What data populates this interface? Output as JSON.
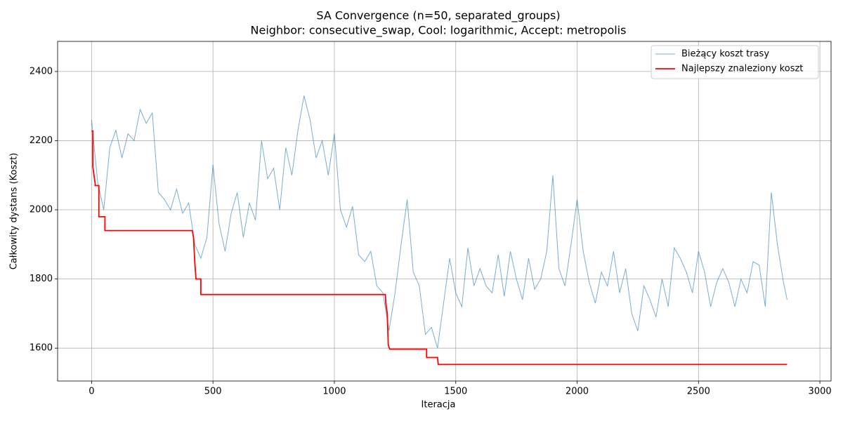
{
  "chart_data": {
    "type": "line",
    "title": "SA Convergence (n=50, separated_groups)",
    "subtitle": "Neighbor: consecutive_swap, Cool: logarithmic, Accept: metropolis",
    "x_label": "Iteracja",
    "y_label": "Całkowity dystans (Koszt)",
    "xlim": [
      -140,
      3046
    ],
    "ylim": [
      1505,
      2487
    ],
    "xticks": [
      0,
      500,
      1000,
      1500,
      2000,
      2500,
      3000
    ],
    "yticks": [
      1600,
      1800,
      2000,
      2200,
      2400
    ],
    "grid": true,
    "legend": "upper right",
    "series": [
      {
        "name": "Bieżący koszt trasy",
        "color": "#1f77b4",
        "x": [
          0,
          25,
          50,
          75,
          100,
          125,
          150,
          175,
          200,
          225,
          250,
          275,
          300,
          325,
          350,
          375,
          400,
          425,
          450,
          475,
          500,
          525,
          550,
          575,
          600,
          625,
          650,
          675,
          700,
          725,
          750,
          775,
          800,
          825,
          850,
          875,
          900,
          925,
          950,
          975,
          1000,
          1025,
          1050,
          1075,
          1100,
          1125,
          1150,
          1175,
          1200,
          1225,
          1250,
          1275,
          1300,
          1325,
          1350,
          1375,
          1400,
          1425,
          1450,
          1475,
          1500,
          1525,
          1550,
          1575,
          1600,
          1625,
          1650,
          1675,
          1700,
          1725,
          1750,
          1775,
          1800,
          1825,
          1850,
          1875,
          1900,
          1925,
          1950,
          1975,
          2000,
          2025,
          2050,
          2075,
          2100,
          2125,
          2150,
          2175,
          2200,
          2225,
          2250,
          2275,
          2300,
          2325,
          2350,
          2375,
          2400,
          2425,
          2450,
          2475,
          2500,
          2525,
          2550,
          2575,
          2600,
          2625,
          2650,
          2675,
          2700,
          2725,
          2750,
          2775,
          2800,
          2825,
          2850,
          2865
        ],
        "values": [
          2260,
          2080,
          2000,
          2180,
          2230,
          2150,
          2220,
          2200,
          2290,
          2250,
          2280,
          2050,
          2030,
          2000,
          2060,
          1990,
          2020,
          1900,
          1860,
          1920,
          2130,
          1960,
          1880,
          1990,
          2050,
          1920,
          2020,
          1970,
          2200,
          2090,
          2120,
          2000,
          2180,
          2100,
          2230,
          2330,
          2260,
          2150,
          2200,
          2100,
          2220,
          2000,
          1950,
          2010,
          1870,
          1850,
          1880,
          1780,
          1760,
          1650,
          1760,
          1900,
          2030,
          1820,
          1780,
          1640,
          1660,
          1600,
          1730,
          1860,
          1760,
          1720,
          1890,
          1780,
          1830,
          1780,
          1760,
          1870,
          1750,
          1880,
          1800,
          1740,
          1860,
          1770,
          1800,
          1880,
          2100,
          1830,
          1780,
          1900,
          2030,
          1880,
          1790,
          1730,
          1820,
          1780,
          1880,
          1760,
          1830,
          1700,
          1650,
          1780,
          1740,
          1690,
          1800,
          1720,
          1890,
          1860,
          1820,
          1760,
          1880,
          1820,
          1720,
          1790,
          1830,
          1790,
          1720,
          1800,
          1760,
          1850,
          1840,
          1720,
          2050,
          1900,
          1790,
          1740
        ]
      },
      {
        "name": "Najlepszy znaleziony koszt",
        "color": "#ff0000",
        "x": [
          0,
          5,
          5,
          15,
          15,
          30,
          30,
          55,
          55,
          415,
          420,
          425,
          430,
          450,
          450,
          1210,
          1212,
          1218,
          1222,
          1228,
          1380,
          1380,
          1425,
          1428,
          2865
        ],
        "values": [
          2228,
          2228,
          2125,
          2075,
          2070,
          2070,
          1980,
          1980,
          1940,
          1940,
          1920,
          1850,
          1800,
          1800,
          1755,
          1755,
          1730,
          1700,
          1610,
          1597,
          1597,
          1573,
          1573,
          1553,
          1553
        ]
      }
    ]
  }
}
